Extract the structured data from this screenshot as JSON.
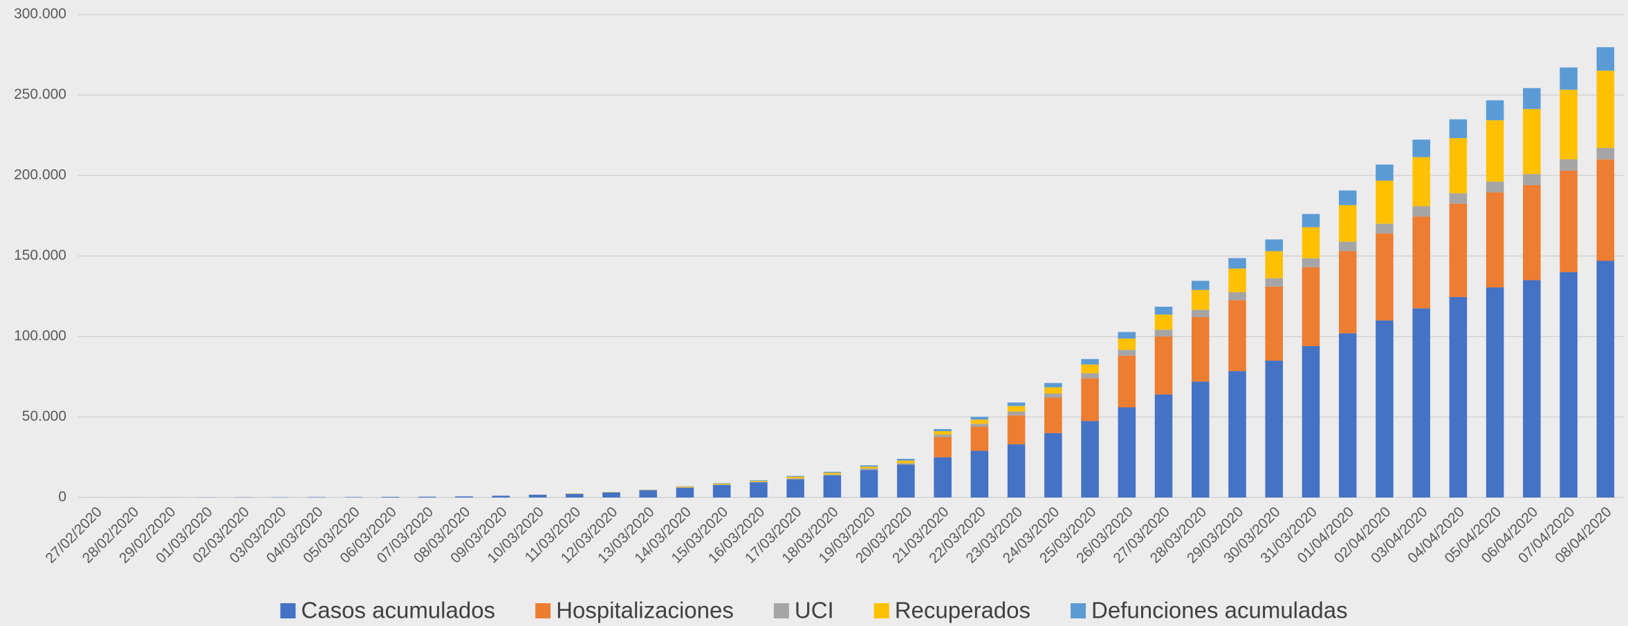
{
  "chart_data": {
    "type": "stacked_bar",
    "categories": [
      "27/02/2020",
      "28/02/2020",
      "29/02/2020",
      "01/03/2020",
      "02/03/2020",
      "03/03/2020",
      "04/03/2020",
      "05/03/2020",
      "06/03/2020",
      "07/03/2020",
      "08/03/2020",
      "09/03/2020",
      "10/03/2020",
      "11/03/2020",
      "12/03/2020",
      "13/03/2020",
      "14/03/2020",
      "15/03/2020",
      "16/03/2020",
      "17/03/2020",
      "18/03/2020",
      "19/03/2020",
      "20/03/2020",
      "21/03/2020",
      "22/03/2020",
      "23/03/2020",
      "24/03/2020",
      "25/03/2020",
      "26/03/2020",
      "27/03/2020",
      "28/03/2020",
      "29/03/2020",
      "30/03/2020",
      "31/03/2020",
      "01/04/2020",
      "02/04/2020",
      "03/04/2020",
      "04/04/2020",
      "05/04/2020",
      "06/04/2020",
      "07/04/2020",
      "08/04/2020"
    ],
    "series": [
      {
        "name": "Casos acumulados",
        "color": "#4472c4",
        "values": [
          15,
          32,
          45,
          84,
          120,
          165,
          222,
          259,
          400,
          500,
          673,
          1073,
          1695,
          2277,
          3146,
          4500,
          6000,
          7800,
          9400,
          11300,
          13700,
          17100,
          20400,
          25000,
          29000,
          33000,
          40000,
          47500,
          56000,
          64000,
          72000,
          78500,
          85000,
          94000,
          102000,
          110000,
          117500,
          124500,
          130500,
          135000,
          140000,
          147000
        ]
      },
      {
        "name": "Hospitalizaciones",
        "color": "#ed7d31",
        "values": [
          0,
          0,
          0,
          0,
          0,
          0,
          0,
          0,
          0,
          0,
          0,
          0,
          0,
          0,
          0,
          0,
          0,
          0,
          0,
          0,
          0,
          0,
          0,
          12500,
          15000,
          18000,
          22000,
          26500,
          32000,
          36000,
          40000,
          44000,
          46000,
          49000,
          51000,
          54000,
          57000,
          58000,
          59000,
          59000,
          63000,
          63000
        ]
      },
      {
        "name": "UCI",
        "color": "#a5a5a5",
        "values": [
          0,
          0,
          0,
          0,
          0,
          0,
          0,
          0,
          0,
          0,
          0,
          0,
          0,
          0,
          0,
          0,
          272,
          272,
          382,
          563,
          563,
          939,
          939,
          1600,
          1800,
          2400,
          2600,
          3200,
          3700,
          4200,
          4600,
          5000,
          5200,
          5600,
          5900,
          6100,
          6400,
          6500,
          6700,
          6900,
          7100,
          7100
        ]
      },
      {
        "name": "Recuperados",
        "color": "#ffc000",
        "values": [
          0,
          0,
          0,
          0,
          0,
          0,
          0,
          0,
          0,
          0,
          0,
          32,
          32,
          183,
          189,
          193,
          517,
          517,
          530,
          1028,
          1081,
          1107,
          1588,
          2100,
          2600,
          3400,
          3800,
          5400,
          7000,
          9400,
          12300,
          14700,
          16800,
          19300,
          22700,
          26700,
          30500,
          34200,
          38100,
          40400,
          43200,
          48000
        ]
      },
      {
        "name": "Defunciones acumuladas",
        "color": "#5b9bd5",
        "values": [
          0,
          0,
          0,
          0,
          0,
          0,
          0,
          0,
          0,
          0,
          0,
          28,
          35,
          54,
          84,
          120,
          195,
          288,
          342,
          533,
          623,
          830,
          1093,
          1300,
          1700,
          2200,
          2700,
          3400,
          4100,
          4900,
          5700,
          6500,
          7300,
          8200,
          9100,
          10000,
          10900,
          11700,
          12400,
          13000,
          13800,
          14600
        ]
      }
    ],
    "ylim": [
      0,
      300000
    ],
    "yticks": [
      0,
      {
        "value": 50000,
        "label": "50.000"
      },
      {
        "value": 100000,
        "label": "100.000"
      },
      {
        "value": 150000,
        "label": "150.000"
      },
      {
        "value": 200000,
        "label": "200.000"
      },
      {
        "value": 250000,
        "label": "250.000"
      },
      {
        "value": 300000,
        "label": "300.000"
      }
    ],
    "grid": true,
    "legend": "bottom"
  }
}
